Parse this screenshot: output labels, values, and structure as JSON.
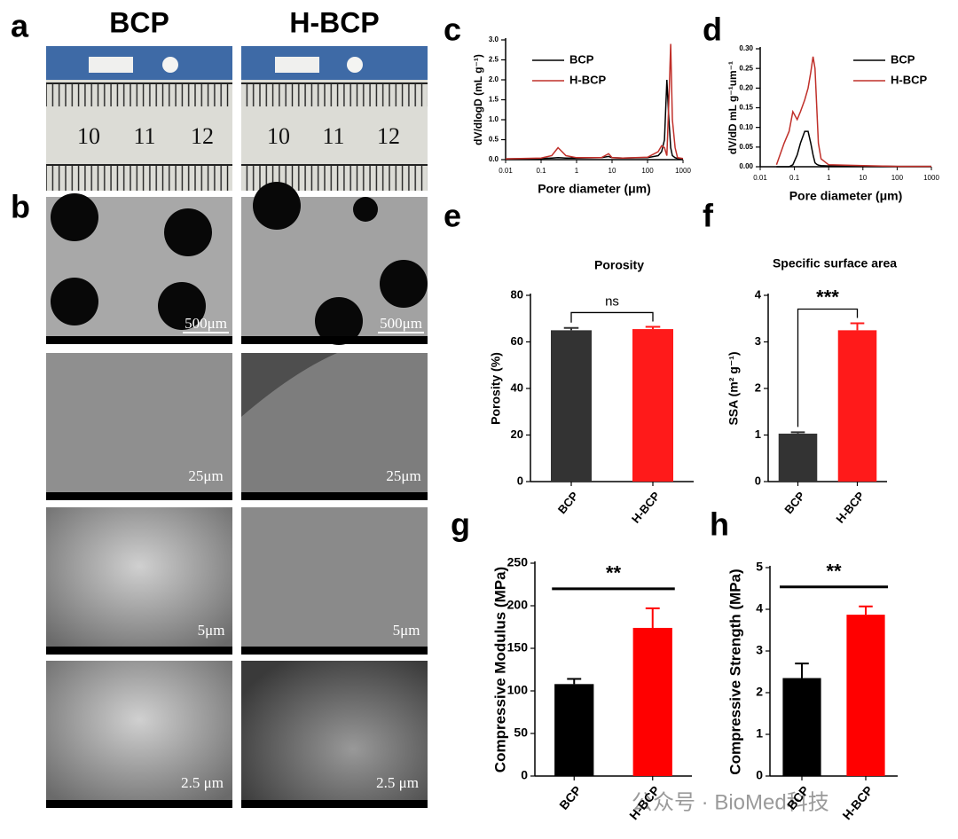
{
  "figure": {
    "panel_labels": [
      "a",
      "b",
      "c",
      "d",
      "e",
      "f",
      "g",
      "h"
    ],
    "photo_headers": [
      "BCP",
      "H-BCP"
    ],
    "ruler_numbers": [
      10,
      11,
      12
    ],
    "scale_bars": {
      "BCP": [
        "500μm",
        "25μm",
        "5μm",
        "2.5 μm"
      ],
      "H-BCP": [
        "500μm",
        "25μm",
        "5μm",
        "2.5 μm"
      ]
    },
    "watermark": "公众号 · BioMed科技"
  },
  "chart_data": [
    {
      "type": "line",
      "xlabel": "Pore diameter (μm)",
      "ylabel": "dV/dlogD (mL g⁻¹)",
      "xscale": "log",
      "xlim": [
        0.01,
        1000
      ],
      "xticks": [
        0.01,
        0.1,
        1,
        10,
        100,
        1000
      ],
      "ylim": [
        0,
        3
      ],
      "yticks": [
        {
          "value": 0,
          "label": "0.0"
        },
        0.5,
        {
          "value": 1,
          "label": "1.0"
        },
        1.5,
        {
          "value": 2,
          "label": "2.0"
        },
        2.5,
        {
          "value": 3,
          "label": "3.0"
        }
      ],
      "x": [
        0.01,
        0.1,
        0.2,
        0.3,
        0.5,
        1,
        5,
        8,
        10,
        20,
        100,
        200,
        250,
        300,
        350,
        400,
        450,
        500,
        600,
        700,
        1000
      ],
      "series": [
        {
          "name": "BCP",
          "color": "#000000",
          "values": [
            0.02,
            0.03,
            0.04,
            0.05,
            0.04,
            0.04,
            0.05,
            0.08,
            0.05,
            0.04,
            0.05,
            0.1,
            0.2,
            0.5,
            2.0,
            1.0,
            0.3,
            0.1,
            0.05,
            0.03,
            0.02
          ]
        },
        {
          "name": "H-BCP",
          "color": "#c0302a",
          "values": [
            0.02,
            0.04,
            0.1,
            0.3,
            0.1,
            0.05,
            0.05,
            0.15,
            0.05,
            0.04,
            0.06,
            0.2,
            0.35,
            0.3,
            0.1,
            1.5,
            2.9,
            1.0,
            0.3,
            0.05,
            0.03
          ]
        }
      ]
    },
    {
      "type": "line",
      "xlabel": "Pore diameter (μm)",
      "ylabel": "dV/dD  mL g⁻¹um⁻¹",
      "xscale": "log",
      "xlim": [
        0.01,
        1000
      ],
      "xticks": [
        0.01,
        0.1,
        1,
        10,
        100,
        1000
      ],
      "ylim": [
        0,
        0.3
      ],
      "yticks": [
        {
          "value": 0,
          "label": "0.00"
        },
        0.05,
        {
          "value": 0.1,
          "label": "0.10"
        },
        0.15,
        {
          "value": 0.2,
          "label": "0.20"
        },
        0.25,
        {
          "value": 0.3,
          "label": "0.30"
        }
      ],
      "x": [
        0.03,
        0.05,
        0.07,
        0.09,
        0.12,
        0.15,
        0.2,
        0.25,
        0.3,
        0.35,
        0.4,
        0.45,
        0.5,
        0.6,
        1,
        10,
        100,
        1000
      ],
      "series": [
        {
          "name": "BCP",
          "color": "#000000",
          "values": [
            0,
            0,
            0,
            0.005,
            0.03,
            0.06,
            0.09,
            0.09,
            0.06,
            0.03,
            0.01,
            0.006,
            0.004,
            0.003,
            0.002,
            0.002,
            0.001,
            0.001
          ]
        },
        {
          "name": "H-BCP",
          "color": "#c0302a",
          "values": [
            0.005,
            0.06,
            0.09,
            0.14,
            0.12,
            0.14,
            0.17,
            0.2,
            0.24,
            0.28,
            0.25,
            0.15,
            0.06,
            0.02,
            0.005,
            0.003,
            0.001,
            0.001
          ]
        }
      ]
    },
    {
      "type": "bar",
      "title": "Porosity",
      "ylabel": "Porosity (%)",
      "categories": [
        "BCP",
        "H-BCP"
      ],
      "values": [
        65,
        65.5
      ],
      "errors": [
        1,
        1
      ],
      "colors": [
        "#333333",
        "#ff1a1a"
      ],
      "ylim": [
        0,
        80
      ],
      "yticks": [
        0,
        20,
        40,
        60,
        80
      ],
      "annotation": "ns"
    },
    {
      "type": "bar",
      "title": "Specific surface area",
      "ylabel": "SSA (m² g⁻¹)",
      "categories": [
        "BCP",
        "H-BCP"
      ],
      "values": [
        1.03,
        3.25
      ],
      "errors": [
        0.03,
        0.15
      ],
      "colors": [
        "#333333",
        "#ff1a1a"
      ],
      "ylim": [
        0,
        4
      ],
      "yticks": [
        0,
        1,
        2,
        3,
        4
      ],
      "annotation": "***"
    },
    {
      "type": "bar",
      "ylabel": "Compressive Modulus (MPa)",
      "categories": [
        "BCP",
        "H-BCP"
      ],
      "values": [
        108,
        174
      ],
      "errors": [
        6,
        23
      ],
      "colors": [
        "#000000",
        "#ff0000"
      ],
      "ylim": [
        0,
        250
      ],
      "yticks": [
        0,
        50,
        100,
        150,
        200,
        250
      ],
      "annotation": "**"
    },
    {
      "type": "bar",
      "ylabel": "Compressive Strength (MPa)",
      "categories": [
        "BCP",
        "H-BCP"
      ],
      "values": [
        2.35,
        3.87
      ],
      "errors": [
        0.35,
        0.2
      ],
      "colors": [
        "#000000",
        "#ff0000"
      ],
      "ylim": [
        0,
        5
      ],
      "yticks": [
        0,
        1,
        2,
        3,
        4,
        5
      ],
      "annotation": "**"
    }
  ]
}
